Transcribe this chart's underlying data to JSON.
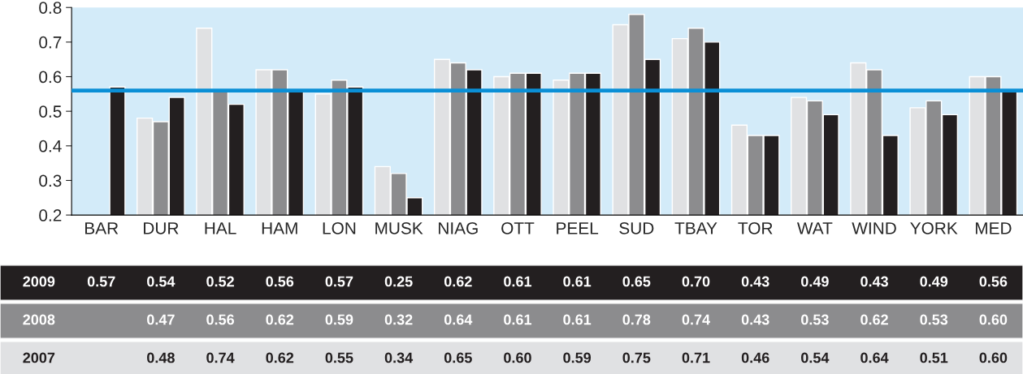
{
  "chart_data": {
    "type": "bar",
    "categories": [
      "BAR",
      "DUR",
      "HAL",
      "HAM",
      "LON",
      "MUSK",
      "NIAG",
      "OTT",
      "PEEL",
      "SUD",
      "TBAY",
      "TOR",
      "WAT",
      "WIND",
      "YORK",
      "MED"
    ],
    "series": [
      {
        "name": "2007",
        "color": "#e0e1e3",
        "values": [
          null,
          0.48,
          0.74,
          0.62,
          0.55,
          0.34,
          0.65,
          0.6,
          0.59,
          0.75,
          0.71,
          0.46,
          0.54,
          0.64,
          0.51,
          0.6
        ],
        "value_labels": [
          null,
          "0.48",
          "0.74",
          "0.62",
          "0.55",
          "0.34",
          "0.65",
          "0.60",
          "0.59",
          "0.75",
          "0.71",
          "0.46",
          "0.54",
          "0.64",
          "0.51",
          "0.60"
        ]
      },
      {
        "name": "2008",
        "color": "#8c8c8e",
        "values": [
          null,
          0.47,
          0.56,
          0.62,
          0.59,
          0.32,
          0.64,
          0.61,
          0.61,
          0.78,
          0.74,
          0.43,
          0.53,
          0.62,
          0.53,
          0.6
        ],
        "value_labels": [
          null,
          "0.47",
          "0.56",
          "0.62",
          "0.59",
          "0.32",
          "0.64",
          "0.61",
          "0.61",
          "0.78",
          "0.74",
          "0.43",
          "0.53",
          "0.62",
          "0.53",
          "0.60"
        ]
      },
      {
        "name": "2009",
        "color": "#231f20",
        "values": [
          0.57,
          0.54,
          0.52,
          0.56,
          0.57,
          0.25,
          0.62,
          0.61,
          0.61,
          0.65,
          0.7,
          0.43,
          0.49,
          0.43,
          0.49,
          0.56
        ],
        "value_labels": [
          "0.57",
          "0.54",
          "0.52",
          "0.56",
          "0.57",
          "0.25",
          "0.62",
          "0.61",
          "0.61",
          "0.65",
          "0.70",
          "0.43",
          "0.49",
          "0.43",
          "0.49",
          "0.56"
        ]
      }
    ],
    "ylim": [
      0.2,
      0.8
    ],
    "yticks": [
      0.2,
      0.3,
      0.4,
      0.5,
      0.6,
      0.7,
      0.8
    ],
    "ref_lines": [
      {
        "axis": "y",
        "value": 0.56,
        "color": "#0a8fd6"
      }
    ],
    "grid": false,
    "legend": false
  }
}
